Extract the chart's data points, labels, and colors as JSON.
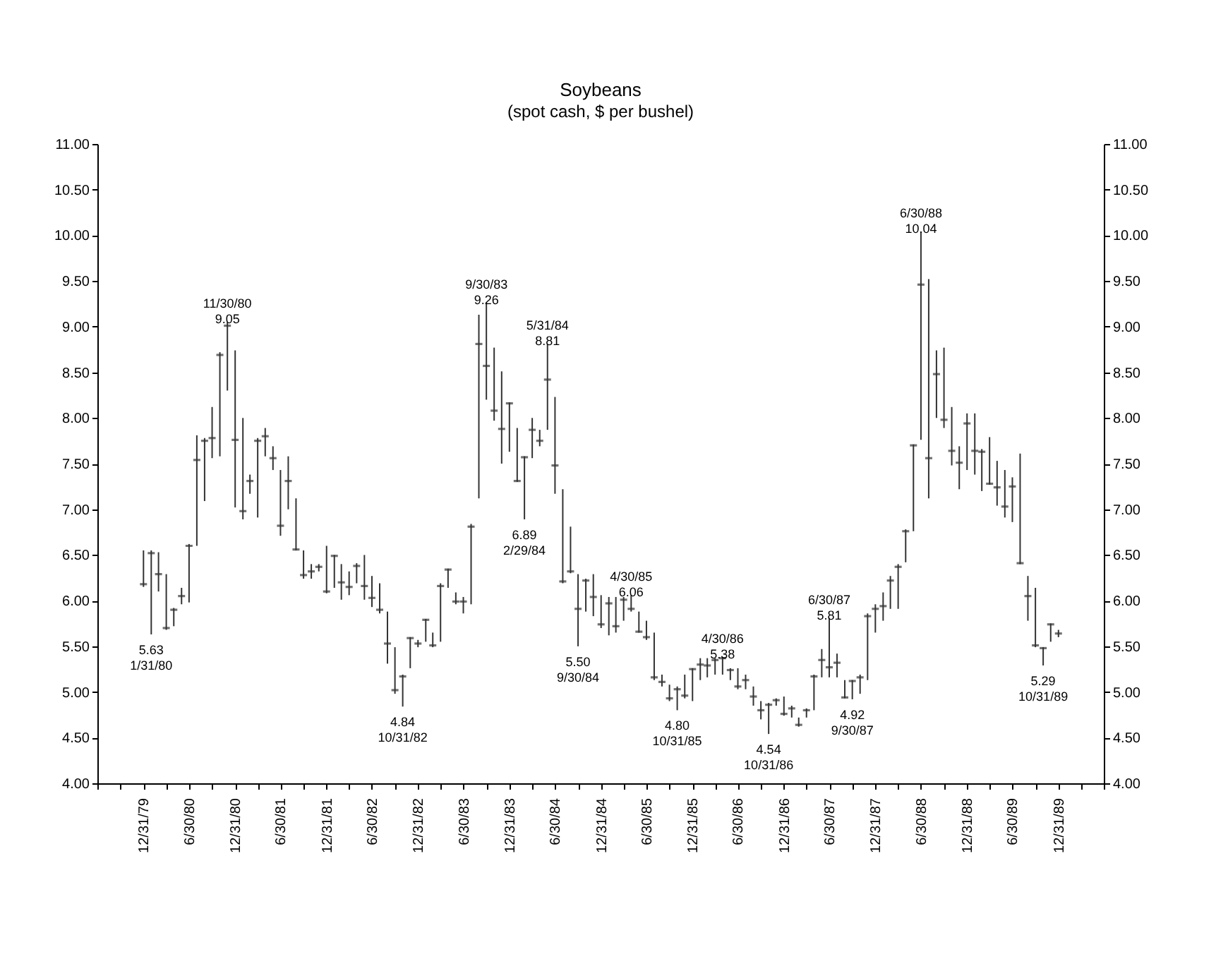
{
  "chart_data": {
    "type": "scatter",
    "title": "Soybeans",
    "subtitle": "(spot cash,  $ per bushel)",
    "color": "#333333",
    "x": [
      "1979-12-31",
      "1980-01-31",
      "1980-02-29",
      "1980-03-31",
      "1980-04-30",
      "1980-05-31",
      "1980-06-30",
      "1980-07-31",
      "1980-08-31",
      "1980-09-30",
      "1980-10-31",
      "1980-11-30",
      "1980-12-31",
      "1981-01-31",
      "1981-02-28",
      "1981-03-31",
      "1981-04-30",
      "1981-05-31",
      "1981-06-30",
      "1981-07-31",
      "1981-08-31",
      "1981-09-30",
      "1981-10-31",
      "1981-11-30",
      "1981-12-31",
      "1982-01-31",
      "1982-02-28",
      "1982-03-31",
      "1982-04-30",
      "1982-05-31",
      "1982-06-30",
      "1982-07-31",
      "1982-08-31",
      "1982-09-30",
      "1982-10-31",
      "1982-11-30",
      "1982-12-31",
      "1983-01-31",
      "1983-02-28",
      "1983-03-31",
      "1983-04-30",
      "1983-05-31",
      "1983-06-30",
      "1983-07-31",
      "1983-08-31",
      "1983-09-30",
      "1983-10-31",
      "1983-11-30",
      "1983-12-31",
      "1984-01-31",
      "1984-02-29",
      "1984-03-31",
      "1984-04-30",
      "1984-05-31",
      "1984-06-30",
      "1984-07-31",
      "1984-08-31",
      "1984-09-30",
      "1984-10-31",
      "1984-11-30",
      "1984-12-31",
      "1985-01-31",
      "1985-02-28",
      "1985-03-31",
      "1985-04-30",
      "1985-05-31",
      "1985-06-30",
      "1985-07-31",
      "1985-08-31",
      "1985-09-30",
      "1985-10-31",
      "1985-11-30",
      "1985-12-31",
      "1986-01-31",
      "1986-02-28",
      "1986-03-31",
      "1986-04-30",
      "1986-05-31",
      "1986-06-30",
      "1986-07-31",
      "1986-08-31",
      "1986-09-30",
      "1986-10-31",
      "1986-11-30",
      "1986-12-31",
      "1987-01-31",
      "1987-02-28",
      "1987-03-31",
      "1987-04-30",
      "1987-05-31",
      "1987-06-30",
      "1987-07-31",
      "1987-08-31",
      "1987-09-30",
      "1987-10-31",
      "1987-11-30",
      "1987-12-31",
      "1988-01-31",
      "1988-02-29",
      "1988-03-31",
      "1988-04-30",
      "1988-05-31",
      "1988-06-30",
      "1988-07-31",
      "1988-08-31",
      "1988-09-30",
      "1988-10-31",
      "1988-11-30",
      "1988-12-31",
      "1989-01-31",
      "1989-02-28",
      "1989-03-31",
      "1989-04-30",
      "1989-05-31",
      "1989-06-30",
      "1989-07-31",
      "1989-08-31",
      "1989-09-30",
      "1989-10-31",
      "1989-11-30",
      "1989-12-31"
    ],
    "values": [
      6.18,
      6.52,
      6.29,
      5.7,
      5.9,
      6.05,
      6.6,
      7.54,
      7.75,
      7.78,
      8.69,
      9.01,
      7.76,
      6.98,
      7.31,
      7.75,
      7.8,
      7.56,
      6.82,
      7.31,
      6.56,
      6.28,
      6.32,
      6.37,
      6.1,
      6.49,
      6.2,
      6.15,
      6.38,
      6.16,
      6.03,
      5.9,
      5.53,
      5.02,
      5.17,
      5.59,
      5.53,
      5.79,
      5.51,
      6.16,
      6.34,
      5.99,
      5.99,
      6.81,
      8.81,
      8.57,
      8.08,
      7.88,
      8.16,
      7.31,
      7.57,
      7.87,
      7.75,
      8.42,
      7.48,
      6.21,
      6.32,
      5.91,
      6.22,
      6.04,
      5.74,
      5.97,
      5.72,
      6.01,
      5.91,
      5.66,
      5.6,
      5.16,
      5.11,
      4.93,
      5.03,
      4.96,
      5.25,
      5.3,
      5.29,
      5.35,
      5.37,
      5.24,
      5.06,
      5.13,
      4.95,
      4.8,
      4.86,
      4.91,
      4.76,
      4.82,
      4.64,
      4.8,
      5.17,
      5.35,
      5.27,
      5.32,
      4.94,
      5.12,
      5.16,
      5.83,
      5.91,
      5.94,
      6.22,
      6.37,
      6.76,
      7.7,
      9.46,
      7.56,
      8.48,
      7.98,
      7.64,
      7.51,
      7.94,
      7.64,
      7.63,
      7.28,
      7.24,
      7.03,
      7.25,
      6.41,
      6.05,
      5.51,
      5.48,
      5.74,
      5.64
    ],
    "errors": [
      [
        6.15,
        6.55
      ],
      [
        5.63,
        6.55
      ],
      [
        6.1,
        6.53
      ],
      [
        5.68,
        6.29
      ],
      [
        5.72,
        5.92
      ],
      [
        5.96,
        6.14
      ],
      [
        5.98,
        6.62
      ],
      [
        6.6,
        7.81
      ],
      [
        7.09,
        7.78
      ],
      [
        7.56,
        8.12
      ],
      [
        7.58,
        8.72
      ],
      [
        8.3,
        9.05
      ],
      [
        7.02,
        8.74
      ],
      [
        6.89,
        8.0
      ],
      [
        7.17,
        7.38
      ],
      [
        6.91,
        7.78
      ],
      [
        7.58,
        7.89
      ],
      [
        7.43,
        7.69
      ],
      [
        6.71,
        7.43
      ],
      [
        7.0,
        7.58
      ],
      [
        6.55,
        7.12
      ],
      [
        6.24,
        6.55
      ],
      [
        6.24,
        6.4
      ],
      [
        6.32,
        6.4
      ],
      [
        6.08,
        6.6
      ],
      [
        6.14,
        6.5
      ],
      [
        6.01,
        6.4
      ],
      [
        6.06,
        6.32
      ],
      [
        6.19,
        6.41
      ],
      [
        6.01,
        6.5
      ],
      [
        5.93,
        6.27
      ],
      [
        5.86,
        6.19
      ],
      [
        5.31,
        5.88
      ],
      [
        4.98,
        5.49
      ],
      [
        4.84,
        5.19
      ],
      [
        5.26,
        5.6
      ],
      [
        5.49,
        5.57
      ],
      [
        5.55,
        5.8
      ],
      [
        5.49,
        5.65
      ],
      [
        5.55,
        6.19
      ],
      [
        6.14,
        6.35
      ],
      [
        5.96,
        6.09
      ],
      [
        5.86,
        6.04
      ],
      [
        5.96,
        6.84
      ],
      [
        7.12,
        9.13
      ],
      [
        8.2,
        9.26
      ],
      [
        7.97,
        8.77
      ],
      [
        7.5,
        8.51
      ],
      [
        7.63,
        8.17
      ],
      [
        7.3,
        7.89
      ],
      [
        6.89,
        7.58
      ],
      [
        7.56,
        8.0
      ],
      [
        7.69,
        7.87
      ],
      [
        7.87,
        8.81
      ],
      [
        7.17,
        8.23
      ],
      [
        6.19,
        7.22
      ],
      [
        6.3,
        6.81
      ],
      [
        5.5,
        6.29
      ],
      [
        5.88,
        6.24
      ],
      [
        5.83,
        6.29
      ],
      [
        5.7,
        6.06
      ],
      [
        5.62,
        6.04
      ],
      [
        5.65,
        6.04
      ],
      [
        5.78,
        6.04
      ],
      [
        5.88,
        6.06
      ],
      [
        5.65,
        5.88
      ],
      [
        5.57,
        5.78
      ],
      [
        5.13,
        5.65
      ],
      [
        5.06,
        5.19
      ],
      [
        4.9,
        5.08
      ],
      [
        4.8,
        5.06
      ],
      [
        4.93,
        5.19
      ],
      [
        4.9,
        5.26
      ],
      [
        5.13,
        5.37
      ],
      [
        5.16,
        5.37
      ],
      [
        5.19,
        5.37
      ],
      [
        5.19,
        5.38
      ],
      [
        5.13,
        5.26
      ],
      [
        5.03,
        5.26
      ],
      [
        5.03,
        5.19
      ],
      [
        4.85,
        5.06
      ],
      [
        4.7,
        4.9
      ],
      [
        4.54,
        4.88
      ],
      [
        4.85,
        4.93
      ],
      [
        4.74,
        4.95
      ],
      [
        4.72,
        4.85
      ],
      [
        4.62,
        4.72
      ],
      [
        4.72,
        4.82
      ],
      [
        4.8,
        5.19
      ],
      [
        5.16,
        5.47
      ],
      [
        5.16,
        5.81
      ],
      [
        5.16,
        5.42
      ],
      [
        4.93,
        5.13
      ],
      [
        4.92,
        5.13
      ],
      [
        4.98,
        5.19
      ],
      [
        5.13,
        5.86
      ],
      [
        5.65,
        5.96
      ],
      [
        5.78,
        6.09
      ],
      [
        5.91,
        6.27
      ],
      [
        5.91,
        6.4
      ],
      [
        6.42,
        6.78
      ],
      [
        6.76,
        7.71
      ],
      [
        7.76,
        10.04
      ],
      [
        7.12,
        9.52
      ],
      [
        8.0,
        8.74
      ],
      [
        7.89,
        8.77
      ],
      [
        7.48,
        8.12
      ],
      [
        7.22,
        7.69
      ],
      [
        7.43,
        8.05
      ],
      [
        7.38,
        8.05
      ],
      [
        7.2,
        7.66
      ],
      [
        7.27,
        7.79
      ],
      [
        7.04,
        7.53
      ],
      [
        6.91,
        7.43
      ],
      [
        6.86,
        7.35
      ],
      [
        6.4,
        7.61
      ],
      [
        5.78,
        6.27
      ],
      [
        5.49,
        6.14
      ],
      [
        5.29,
        5.49
      ],
      [
        5.55,
        5.75
      ],
      [
        5.6,
        5.68
      ]
    ],
    "annotations": [
      {
        "text": "5.63\n1/31/80",
        "x": "1980-01-31",
        "y": 5.63
      },
      {
        "text": "11/30/80\n9.05",
        "x": "1980-11-30",
        "y": 9.05
      },
      {
        "text": "4.84\n10/31/82",
        "x": "1982-10-31",
        "y": 4.84
      },
      {
        "text": "9/30/83\n9.26",
        "x": "1983-09-30",
        "y": 9.26
      },
      {
        "text": "6.89\n2/29/84",
        "x": "1984-02-29",
        "y": 6.89
      },
      {
        "text": "5/31/84\n8.81",
        "x": "1984-05-31",
        "y": 8.81
      },
      {
        "text": "5.50\n9/30/84",
        "x": "1984-09-30",
        "y": 5.5
      },
      {
        "text": "4/30/85\n6.06",
        "x": "1985-04-30",
        "y": 6.06
      },
      {
        "text": "4.80\n10/31/85",
        "x": "1985-10-31",
        "y": 4.8
      },
      {
        "text": "4/30/86\n5.38",
        "x": "1986-04-30",
        "y": 5.38
      },
      {
        "text": "4.54\n10/31/86",
        "x": "1986-10-31",
        "y": 4.54
      },
      {
        "text": "6/30/87\n5.81",
        "x": "1987-06-30",
        "y": 5.81
      },
      {
        "text": "4.92\n9/30/87",
        "x": "1987-09-30",
        "y": 4.92
      },
      {
        "text": "6/30/88\n10.04",
        "x": "1988-06-30",
        "y": 10.04
      },
      {
        "text": "5.29\n10/31/89",
        "x": "1989-10-31",
        "y": 5.29
      }
    ],
    "xlim": [
      "1979-06-30",
      "1990-06-30"
    ],
    "xticks": [
      {
        "value": "1979-06-30",
        "label": null
      },
      {
        "value": "1979-09-30",
        "label": null
      },
      {
        "value": "1979-12-31",
        "label": "12/31/79"
      },
      {
        "value": "1980-03-31",
        "label": null
      },
      {
        "value": "1980-06-30",
        "label": "6/30/80"
      },
      {
        "value": "1980-09-30",
        "label": null
      },
      {
        "value": "1980-12-31",
        "label": "12/31/80"
      },
      {
        "value": "1981-03-31",
        "label": null
      },
      {
        "value": "1981-06-30",
        "label": "6/30/81"
      },
      {
        "value": "1981-09-30",
        "label": null
      },
      {
        "value": "1981-12-31",
        "label": "12/31/81"
      },
      {
        "value": "1982-03-31",
        "label": null
      },
      {
        "value": "1982-06-30",
        "label": "6/30/82"
      },
      {
        "value": "1982-09-30",
        "label": null
      },
      {
        "value": "1982-12-31",
        "label": "12/31/82"
      },
      {
        "value": "1983-03-31",
        "label": null
      },
      {
        "value": "1983-06-30",
        "label": "6/30/83"
      },
      {
        "value": "1983-09-30",
        "label": null
      },
      {
        "value": "1983-12-31",
        "label": "12/31/83"
      },
      {
        "value": "1984-03-31",
        "label": null
      },
      {
        "value": "1984-06-30",
        "label": "6/30/84"
      },
      {
        "value": "1984-09-30",
        "label": null
      },
      {
        "value": "1984-12-31",
        "label": "12/31/84"
      },
      {
        "value": "1985-03-31",
        "label": null
      },
      {
        "value": "1985-06-30",
        "label": "6/30/85"
      },
      {
        "value": "1985-09-30",
        "label": null
      },
      {
        "value": "1985-12-31",
        "label": "12/31/85"
      },
      {
        "value": "1986-03-31",
        "label": null
      },
      {
        "value": "1986-06-30",
        "label": "6/30/86"
      },
      {
        "value": "1986-09-30",
        "label": null
      },
      {
        "value": "1986-12-31",
        "label": "12/31/86"
      },
      {
        "value": "1987-03-31",
        "label": null
      },
      {
        "value": "1987-06-30",
        "label": "6/30/87"
      },
      {
        "value": "1987-09-30",
        "label": null
      },
      {
        "value": "1987-12-31",
        "label": "12/31/87"
      },
      {
        "value": "1988-03-31",
        "label": null
      },
      {
        "value": "1988-06-30",
        "label": "6/30/88"
      },
      {
        "value": "1988-09-30",
        "label": null
      },
      {
        "value": "1988-12-31",
        "label": "12/31/88"
      },
      {
        "value": "1989-03-31",
        "label": null
      },
      {
        "value": "1989-06-30",
        "label": "6/30/89"
      },
      {
        "value": "1989-09-30",
        "label": null
      },
      {
        "value": "1989-12-31",
        "label": "12/31/89"
      },
      {
        "value": "1990-03-31",
        "label": null
      },
      {
        "value": "1990-06-30",
        "label": null
      }
    ],
    "ylim": [
      4,
      11
    ],
    "yticks": [
      {
        "value": 4,
        "label": "4.00"
      },
      {
        "value": 4.5,
        "label": "4.50"
      },
      {
        "value": 5,
        "label": "5.00"
      },
      {
        "value": 5.5,
        "label": "5.50"
      },
      {
        "value": 6,
        "label": "6.00"
      },
      {
        "value": 6.5,
        "label": "6.50"
      },
      {
        "value": 7,
        "label": "7.00"
      },
      {
        "value": 7.5,
        "label": "7.50"
      },
      {
        "value": 8,
        "label": "8.00"
      },
      {
        "value": 8.5,
        "label": "8.50"
      },
      {
        "value": 9,
        "label": "9.00"
      },
      {
        "value": 9.5,
        "label": "9.50"
      },
      {
        "value": 10,
        "label": "10.00"
      },
      {
        "value": 10.5,
        "label": "10.50"
      },
      {
        "value": 11,
        "label": "11.00"
      }
    ],
    "y2lim": [
      4,
      11
    ],
    "y2ticks": [
      {
        "value": 4,
        "label": "4.00"
      },
      {
        "value": 4.5,
        "label": "4.50"
      },
      {
        "value": 5,
        "label": "5.00"
      },
      {
        "value": 5.5,
        "label": "5.50"
      },
      {
        "value": 6,
        "label": "6.00"
      },
      {
        "value": 6.5,
        "label": "6.50"
      },
      {
        "value": 7,
        "label": "7.00"
      },
      {
        "value": 7.5,
        "label": "7.50"
      },
      {
        "value": 8,
        "label": "8.00"
      },
      {
        "value": 8.5,
        "label": "8.50"
      },
      {
        "value": 9,
        "label": "9.00"
      },
      {
        "value": 9.5,
        "label": "9.50"
      },
      {
        "value": 10,
        "label": "10.00"
      },
      {
        "value": 10.5,
        "label": "10.50"
      },
      {
        "value": 11,
        "label": "11.00"
      }
    ]
  }
}
